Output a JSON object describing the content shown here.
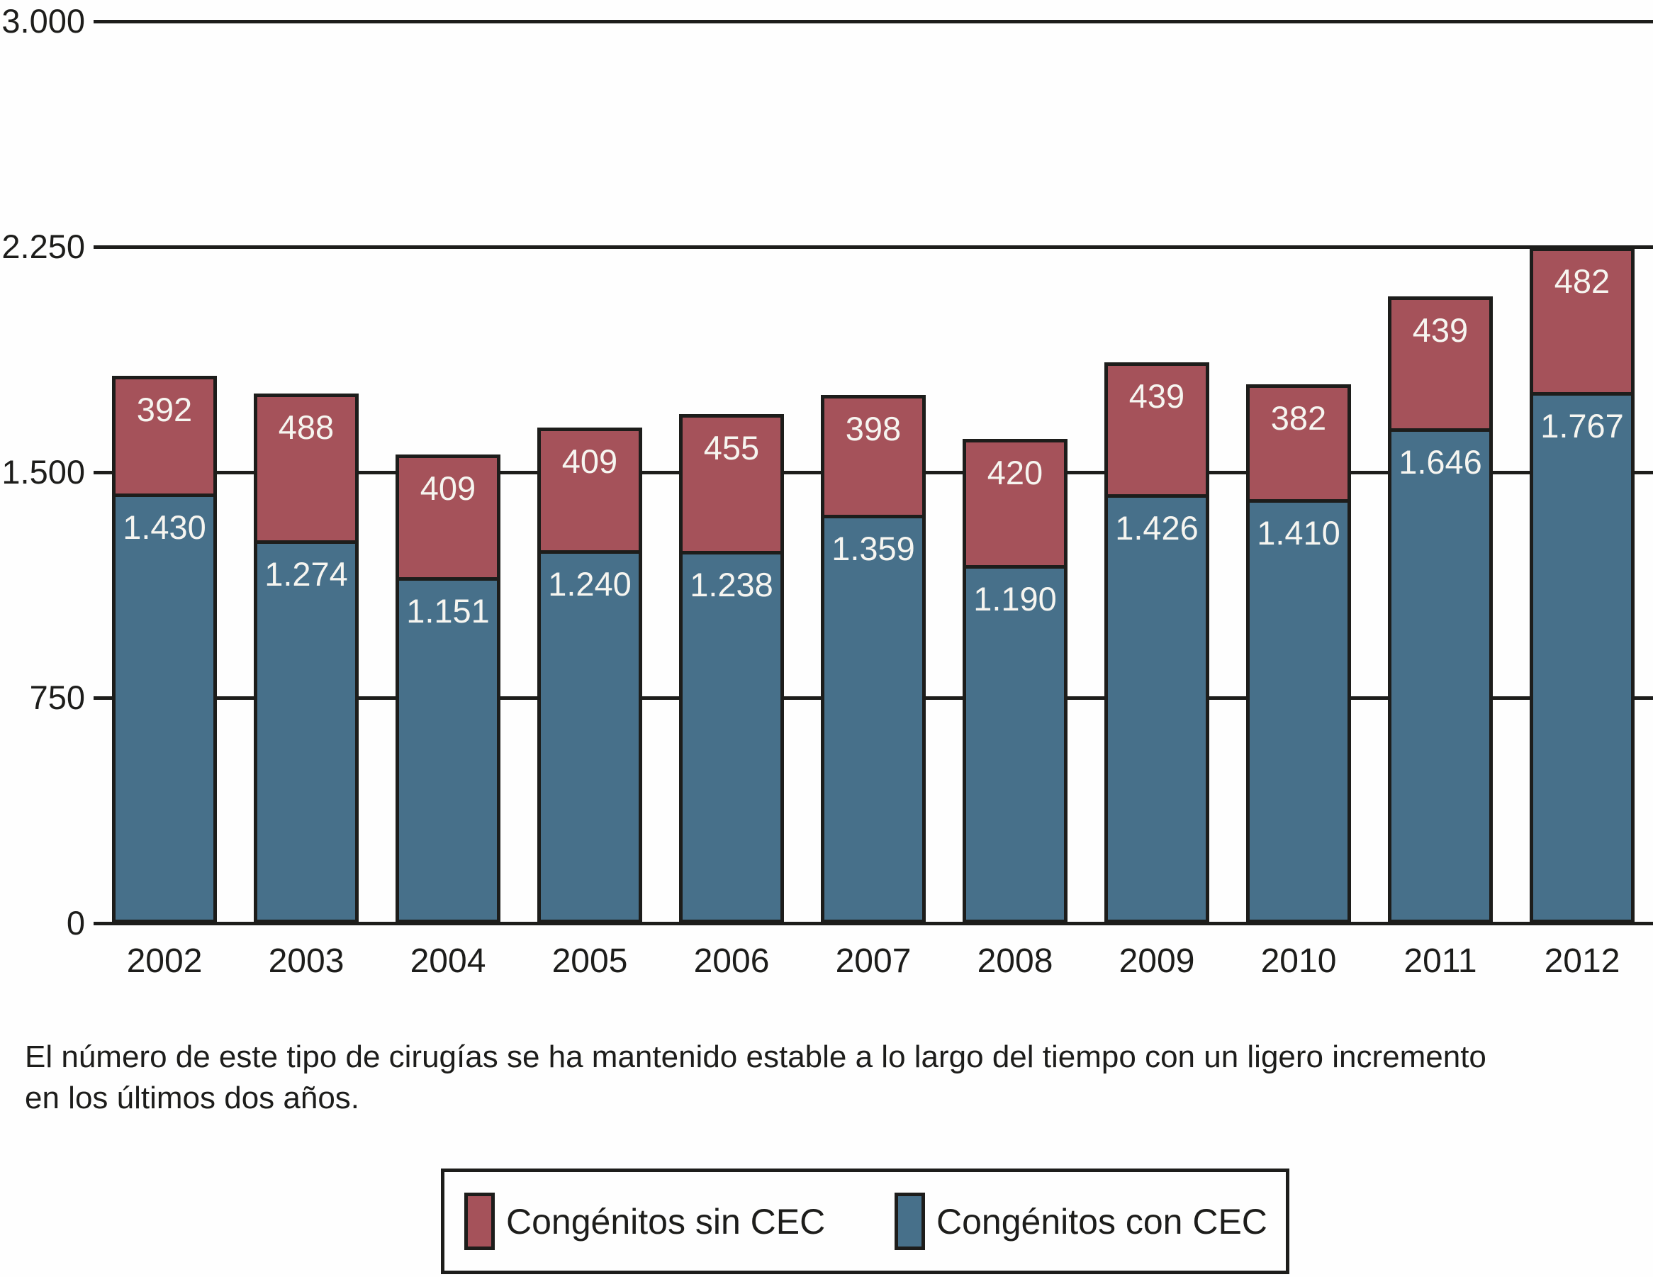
{
  "chart_data": {
    "type": "bar",
    "stacked": true,
    "title": "",
    "xlabel": "",
    "ylabel": "",
    "categories": [
      "2002",
      "2003",
      "2004",
      "2005",
      "2006",
      "2007",
      "2008",
      "2009",
      "2010",
      "2011",
      "2012"
    ],
    "series": [
      {
        "name": "Congénitos con CEC",
        "color": "#47708a",
        "values": [
          1430,
          1274,
          1151,
          1240,
          1238,
          1359,
          1190,
          1426,
          1410,
          1646,
          1767
        ],
        "labels": [
          "1.430",
          "1.274",
          "1.151",
          "1.240",
          "1.238",
          "1.359",
          "1.190",
          "1.426",
          "1.410",
          "1.646",
          "1.767"
        ]
      },
      {
        "name": "Congénitos sin CEC",
        "color": "#a5525a",
        "values": [
          392,
          488,
          409,
          409,
          455,
          398,
          420,
          439,
          382,
          439,
          482
        ],
        "labels": [
          "392",
          "488",
          "409",
          "409",
          "455",
          "398",
          "420",
          "439",
          "382",
          "439",
          "482"
        ]
      }
    ],
    "ylim": [
      0,
      3000
    ],
    "yticks": [
      {
        "value": 0,
        "label": "0"
      },
      {
        "value": 750,
        "label": "750"
      },
      {
        "value": 1500,
        "label": "1.500"
      },
      {
        "value": 2250,
        "label": "2.250"
      },
      {
        "value": 3000,
        "label": "3.000"
      }
    ],
    "grid": true,
    "legend_position": "bottom"
  },
  "caption": {
    "lines": [
      "El número de este tipo de cirugías se ha mantenido estable a lo largo del tiempo con un ligero incremento",
      "en los últimos dos años."
    ]
  },
  "legend": {
    "items": [
      {
        "label": "Congénitos sin CEC",
        "color": "#a5525a",
        "key": "sin-cec"
      },
      {
        "label": "Congénitos con CEC",
        "color": "#47708a",
        "key": "con-cec"
      }
    ]
  }
}
